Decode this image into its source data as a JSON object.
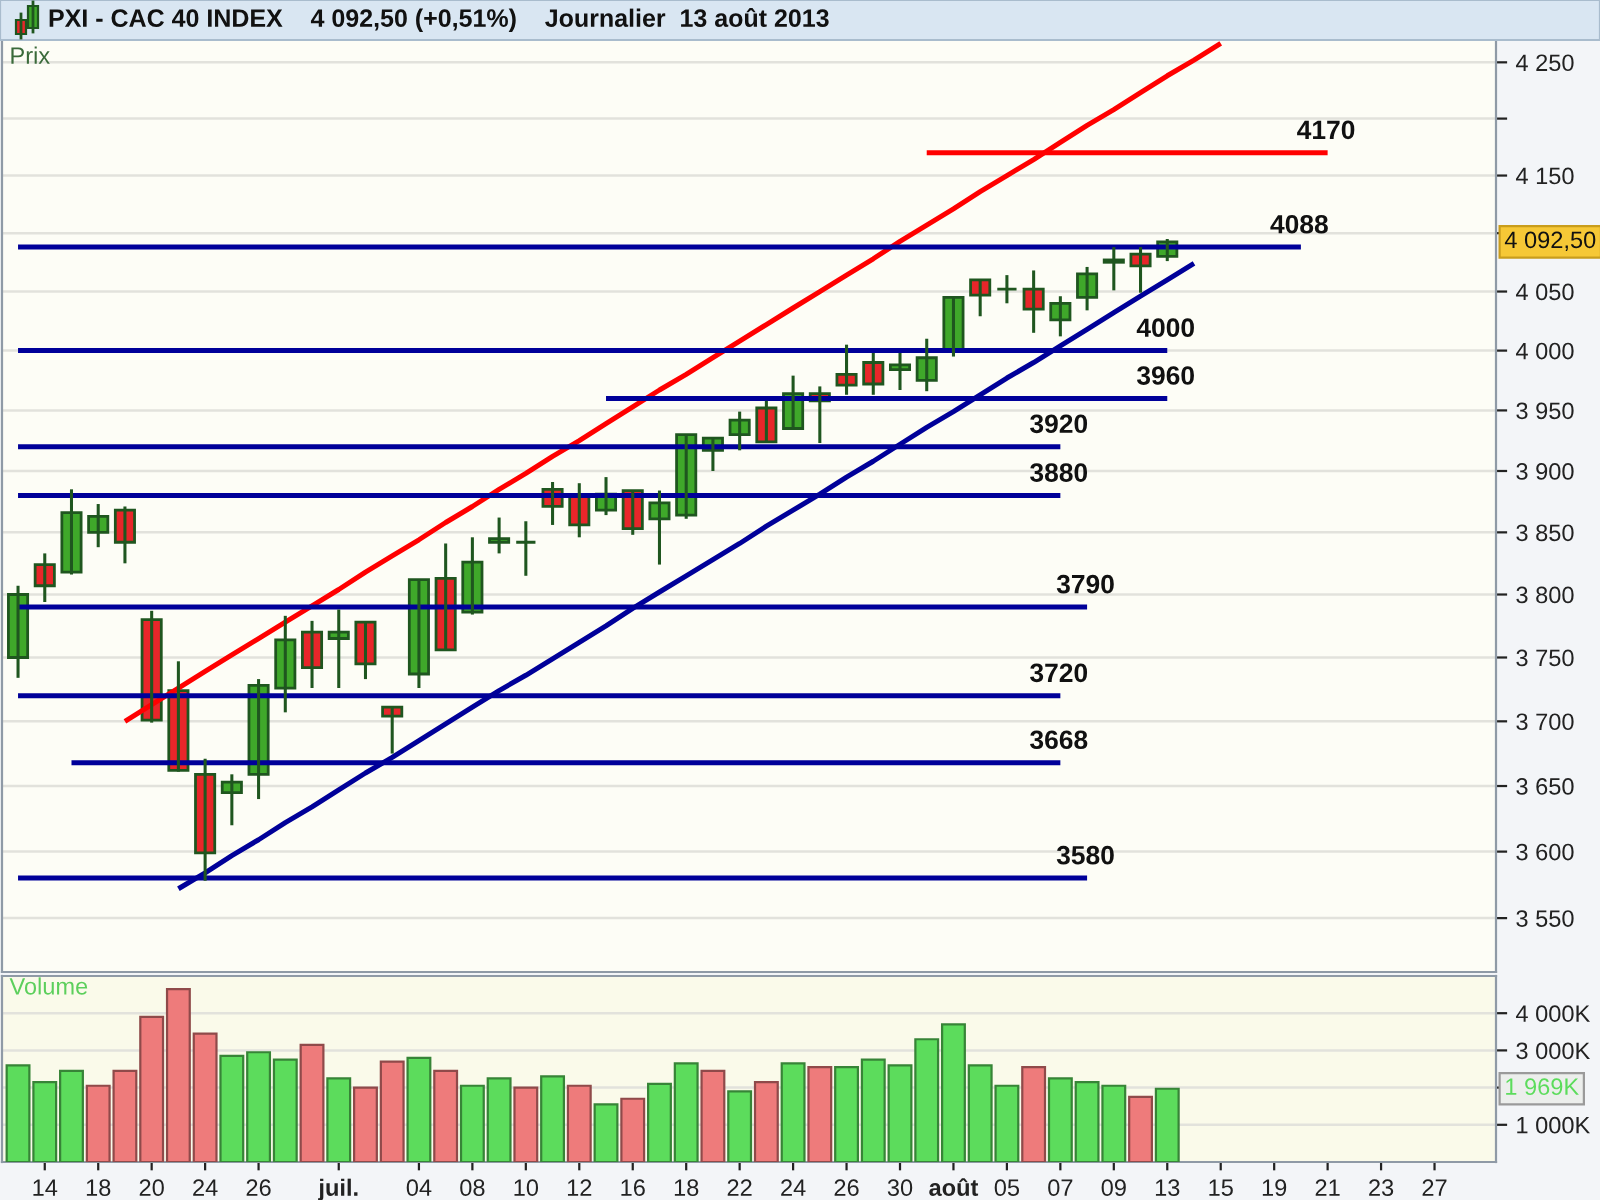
{
  "chart_data": [
    {
      "type": "candlestick",
      "title": "PXI - CAC 40 INDEX    4 092,50 (+0,51%)    Journalier  13 août 2013",
      "ylabel": "Prix",
      "categories": [
        null,
        null,
        null,
        null,
        null,
        null,
        null,
        null,
        null,
        null,
        null,
        null,
        null,
        null,
        null,
        null,
        null,
        null,
        null,
        null,
        null,
        null,
        null,
        null,
        null,
        null,
        null,
        null,
        null,
        null,
        null,
        null,
        null,
        null,
        null,
        null,
        null,
        null,
        null,
        null,
        null,
        null,
        null,
        null,
        null,
        null,
        null,
        null,
        null,
        null,
        null,
        null,
        null,
        null,
        null,
        null
      ],
      "ohlc": [
        [
          3750,
          3807,
          3734,
          3800
        ],
        [
          3824,
          3833,
          3794,
          3807
        ],
        [
          3818,
          3885,
          3816,
          3866
        ],
        [
          3850,
          3873,
          3838,
          3863
        ],
        [
          3868,
          3871,
          3825,
          3842
        ],
        [
          3780,
          3787,
          3699,
          3701
        ],
        [
          3724,
          3747,
          3661,
          3662
        ],
        [
          3659,
          3671,
          3578,
          3599
        ],
        [
          3645,
          3659,
          3620,
          3653
        ],
        [
          3659,
          3733,
          3640,
          3728
        ],
        [
          3726,
          3783,
          3707,
          3764
        ],
        [
          3770,
          3779,
          3726,
          3742
        ],
        [
          3765,
          3788,
          3726,
          3770
        ],
        [
          3778,
          3778,
          3733,
          3745
        ],
        [
          3711,
          3711,
          3675,
          3704
        ],
        [
          3737,
          3812,
          3726,
          3812
        ],
        [
          3813,
          3841,
          3756,
          3756
        ],
        [
          3786,
          3846,
          3784,
          3826
        ],
        [
          3842,
          3862,
          3833,
          3845
        ],
        [
          3842,
          3859,
          3815,
          3842
        ],
        [
          3885,
          3891,
          3856,
          3871
        ],
        [
          3880,
          3890,
          3846,
          3856
        ],
        [
          3868,
          3895,
          3864,
          3881
        ],
        [
          3884,
          3884,
          3848,
          3853
        ],
        [
          3861,
          3884,
          3824,
          3874
        ],
        [
          3864,
          3930,
          3861,
          3930
        ],
        [
          3917,
          3927,
          3900,
          3927
        ],
        [
          3930,
          3949,
          3917,
          3942
        ],
        [
          3952,
          3958,
          3924,
          3924
        ],
        [
          3935,
          3979,
          3935,
          3964
        ],
        [
          3964,
          3970,
          3923,
          3958
        ],
        [
          3980,
          4005,
          3963,
          3971
        ],
        [
          3990,
          3998,
          3963,
          3972
        ],
        [
          3984,
          3998,
          3967,
          3988
        ],
        [
          3975,
          4010,
          3966,
          3994
        ],
        [
          4000,
          4045,
          3995,
          4045
        ],
        [
          4060,
          4060,
          4029,
          4047
        ],
        [
          4052,
          4064,
          4040,
          4052
        ],
        [
          4052,
          4068,
          4015,
          4035
        ],
        [
          4026,
          4046,
          4012,
          4040
        ],
        [
          4045,
          4071,
          4034,
          4065
        ],
        [
          4075,
          4088,
          4051,
          4077
        ],
        [
          4082,
          4088,
          4049,
          4072
        ],
        [
          4080,
          4095,
          4076,
          4092.5
        ],
        null,
        null,
        null,
        null,
        null,
        null,
        null,
        null,
        null,
        null,
        null,
        null
      ],
      "colors": [
        "#3fa82a",
        "#e8262a",
        "#3fa82a",
        "#3fa82a",
        "#e8262a",
        "#e8262a",
        "#e8262a",
        "#e8262a",
        "#3fa82a",
        "#3fa82a",
        "#3fa82a",
        "#e8262a",
        "#3fa82a",
        "#e8262a",
        "#e8262a",
        "#3fa82a",
        "#e8262a",
        "#3fa82a",
        "#3fa82a",
        "#1f561f",
        "#e8262a",
        "#e8262a",
        "#3fa82a",
        "#e8262a",
        "#3fa82a",
        "#3fa82a",
        "#3fa82a",
        "#3fa82a",
        "#e8262a",
        "#3fa82a",
        "#e8262a",
        "#e8262a",
        "#e8262a",
        "#3fa82a",
        "#3fa82a",
        "#3fa82a",
        "#e8262a",
        "#1f561f",
        "#e8262a",
        "#3fa82a",
        "#3fa82a",
        "#3fa82a",
        "#e8262a",
        "#3fa82a",
        null,
        null,
        null,
        null,
        null,
        null,
        null,
        null,
        null,
        null,
        null,
        null
      ],
      "series": [
        {
          "type": "line",
          "color": "#ff0000",
          "values": [
            null,
            null,
            null,
            null,
            3700,
            3713,
            3726,
            3739,
            3752,
            3765,
            3778,
            3791,
            3804,
            3818,
            3831,
            3844,
            3858,
            3871,
            3885,
            3898,
            3912,
            3925,
            3939,
            3953,
            3967,
            3980,
            3994,
            4008,
            4022,
            4036,
            4050,
            4064,
            4078,
            4093,
            4107,
            4121,
            4136,
            4150,
            4164,
            4179,
            4194,
            4208,
            4223,
            4238,
            4252,
            4267,
            null,
            null,
            null,
            null,
            null,
            null,
            null,
            null,
            null,
            null
          ]
        },
        {
          "type": "line",
          "color": "#000099",
          "values": [
            null,
            null,
            null,
            null,
            null,
            null,
            3572,
            3584,
            3597,
            3609,
            3622,
            3634,
            3647,
            3660,
            3672,
            3685,
            3698,
            3711,
            3724,
            3736,
            3749,
            3762,
            3775,
            3789,
            3802,
            3815,
            3828,
            3841,
            3855,
            3868,
            3881,
            3895,
            3908,
            3922,
            3936,
            3949,
            3963,
            3977,
            3990,
            4004,
            4018,
            4032,
            4046,
            4060,
            4074,
            null,
            null,
            null,
            null,
            null,
            null,
            null,
            null,
            null,
            null,
            null
          ]
        },
        {
          "type": "line",
          "name": "4170",
          "color": "#ff0000",
          "values": [
            null,
            null,
            null,
            null,
            null,
            null,
            null,
            null,
            null,
            null,
            null,
            null,
            null,
            null,
            null,
            null,
            null,
            null,
            null,
            null,
            null,
            null,
            null,
            null,
            null,
            null,
            null,
            null,
            null,
            null,
            null,
            null,
            null,
            null,
            4170,
            4170,
            4170,
            4170,
            4170,
            4170,
            4170,
            4170,
            4170,
            4170,
            4170,
            4170,
            4170,
            4170,
            4170,
            4170,
            null,
            null,
            null,
            null,
            null,
            null
          ]
        },
        {
          "type": "line",
          "name": "4088",
          "color": "#000099",
          "values": [
            4088,
            4088,
            4088,
            4088,
            4088,
            4088,
            4088,
            4088,
            4088,
            4088,
            4088,
            4088,
            4088,
            4088,
            4088,
            4088,
            4088,
            4088,
            4088,
            4088,
            4088,
            4088,
            4088,
            4088,
            4088,
            4088,
            4088,
            4088,
            4088,
            4088,
            4088,
            4088,
            4088,
            4088,
            4088,
            4088,
            4088,
            4088,
            4088,
            4088,
            4088,
            4088,
            4088,
            4088,
            4088,
            4088,
            4088,
            4088,
            4088,
            null,
            null,
            null,
            null,
            null,
            null,
            null
          ]
        },
        {
          "type": "line",
          "name": "4000",
          "color": "#000099",
          "values": [
            4000,
            4000,
            4000,
            4000,
            4000,
            4000,
            4000,
            4000,
            4000,
            4000,
            4000,
            4000,
            4000,
            4000,
            4000,
            4000,
            4000,
            4000,
            4000,
            4000,
            4000,
            4000,
            4000,
            4000,
            4000,
            4000,
            4000,
            4000,
            4000,
            4000,
            4000,
            4000,
            4000,
            4000,
            4000,
            4000,
            4000,
            4000,
            4000,
            4000,
            4000,
            4000,
            4000,
            4000,
            null,
            null,
            null,
            null,
            null,
            null,
            null,
            null,
            null,
            null,
            null,
            null
          ]
        },
        {
          "type": "line",
          "name": "3960",
          "color": "#000099",
          "values": [
            null,
            null,
            null,
            null,
            null,
            null,
            null,
            null,
            null,
            null,
            null,
            null,
            null,
            null,
            null,
            null,
            null,
            null,
            null,
            null,
            null,
            null,
            3960,
            3960,
            3960,
            3960,
            3960,
            3960,
            3960,
            3960,
            3960,
            3960,
            3960,
            3960,
            3960,
            3960,
            3960,
            3960,
            3960,
            3960,
            3960,
            3960,
            3960,
            3960,
            null,
            null,
            null,
            null,
            null,
            null,
            null,
            null,
            null,
            null,
            null,
            null
          ]
        },
        {
          "type": "line",
          "name": "3920",
          "color": "#000099",
          "values": [
            3920,
            3920,
            3920,
            3920,
            3920,
            3920,
            3920,
            3920,
            3920,
            3920,
            3920,
            3920,
            3920,
            3920,
            3920,
            3920,
            3920,
            3920,
            3920,
            3920,
            3920,
            3920,
            3920,
            3920,
            3920,
            3920,
            3920,
            3920,
            3920,
            3920,
            3920,
            3920,
            3920,
            3920,
            3920,
            3920,
            3920,
            3920,
            3920,
            3920,
            null,
            null,
            null,
            null,
            null,
            null,
            null,
            null,
            null,
            null,
            null,
            null,
            null,
            null,
            null,
            null
          ]
        },
        {
          "type": "line",
          "name": "3880",
          "color": "#000099",
          "values": [
            3880,
            3880,
            3880,
            3880,
            3880,
            3880,
            3880,
            3880,
            3880,
            3880,
            3880,
            3880,
            3880,
            3880,
            3880,
            3880,
            3880,
            3880,
            3880,
            3880,
            3880,
            3880,
            3880,
            3880,
            3880,
            3880,
            3880,
            3880,
            3880,
            3880,
            3880,
            3880,
            3880,
            3880,
            3880,
            3880,
            3880,
            3880,
            3880,
            3880,
            null,
            null,
            null,
            null,
            null,
            null,
            null,
            null,
            null,
            null,
            null,
            null,
            null,
            null,
            null,
            null
          ]
        },
        {
          "type": "line",
          "name": "3790",
          "color": "#000099",
          "values": [
            3790,
            3790,
            3790,
            3790,
            3790,
            3790,
            3790,
            3790,
            3790,
            3790,
            3790,
            3790,
            3790,
            3790,
            3790,
            3790,
            3790,
            3790,
            3790,
            3790,
            3790,
            3790,
            3790,
            3790,
            3790,
            3790,
            3790,
            3790,
            3790,
            3790,
            3790,
            3790,
            3790,
            3790,
            3790,
            3790,
            3790,
            3790,
            3790,
            3790,
            3790,
            null,
            null,
            null,
            null,
            null,
            null,
            null,
            null,
            null,
            null,
            null,
            null,
            null,
            null,
            null
          ]
        },
        {
          "type": "line",
          "name": "3720",
          "color": "#000099",
          "values": [
            3720,
            3720,
            3720,
            3720,
            3720,
            3720,
            3720,
            3720,
            3720,
            3720,
            3720,
            3720,
            3720,
            3720,
            3720,
            3720,
            3720,
            3720,
            3720,
            3720,
            3720,
            3720,
            3720,
            3720,
            3720,
            3720,
            3720,
            3720,
            3720,
            3720,
            3720,
            3720,
            3720,
            3720,
            3720,
            3720,
            3720,
            3720,
            3720,
            3720,
            null,
            null,
            null,
            null,
            null,
            null,
            null,
            null,
            null,
            null,
            null,
            null,
            null,
            null,
            null,
            null
          ]
        },
        {
          "type": "line",
          "name": "3668",
          "color": "#000099",
          "values": [
            null,
            null,
            3668,
            3668,
            3668,
            3668,
            3668,
            3668,
            3668,
            3668,
            3668,
            3668,
            3668,
            3668,
            3668,
            3668,
            3668,
            3668,
            3668,
            3668,
            3668,
            3668,
            3668,
            3668,
            3668,
            3668,
            3668,
            3668,
            3668,
            3668,
            3668,
            3668,
            3668,
            3668,
            3668,
            3668,
            3668,
            3668,
            3668,
            3668,
            null,
            null,
            null,
            null,
            null,
            null,
            null,
            null,
            null,
            null,
            null,
            null,
            null,
            null,
            null,
            null
          ]
        },
        {
          "type": "line",
          "name": "3580",
          "color": "#000099",
          "values": [
            3580,
            3580,
            3580,
            3580,
            3580,
            3580,
            3580,
            3580,
            3580,
            3580,
            3580,
            3580,
            3580,
            3580,
            3580,
            3580,
            3580,
            3580,
            3580,
            3580,
            3580,
            3580,
            3580,
            3580,
            3580,
            3580,
            3580,
            3580,
            3580,
            3580,
            3580,
            3580,
            3580,
            3580,
            3580,
            3580,
            3580,
            3580,
            3580,
            3580,
            3580,
            null,
            null,
            null,
            null,
            null,
            null,
            null,
            null,
            null,
            null,
            null,
            null,
            null,
            null,
            null
          ]
        }
      ],
      "ylim": [
        3510,
        4270
      ],
      "log": true,
      "yticks": [
        {
          "value": 3550,
          "label": "3 550"
        },
        {
          "value": 3600,
          "label": "3 600"
        },
        {
          "value": 3650,
          "label": "3 650"
        },
        {
          "value": 3700,
          "label": "3 700"
        },
        {
          "value": 3750,
          "label": "3 750"
        },
        {
          "value": 3800,
          "label": "3 800"
        },
        {
          "value": 3850,
          "label": "3 850"
        },
        {
          "value": 3900,
          "label": "3 900"
        },
        {
          "value": 3950,
          "label": "3 950"
        },
        {
          "value": 4000,
          "label": "4 000"
        },
        {
          "value": 4050,
          "label": "4 050"
        },
        {
          "value": 4100,
          "label": null
        },
        {
          "value": 4150,
          "label": "4 150"
        },
        {
          "value": 4200,
          "label": null
        },
        {
          "value": 4250,
          "label": "4 250"
        }
      ],
      "grid": "y",
      "annotations": [
        "4 092,50"
      ]
    },
    {
      "type": "bar",
      "ylabel": "Volume",
      "categories": [
        null,
        "14",
        null,
        "18",
        null,
        "20",
        null,
        "24",
        null,
        "26",
        null,
        null,
        "juil.",
        null,
        null,
        "04",
        null,
        "08",
        null,
        "10",
        null,
        "12",
        null,
        "16",
        null,
        "18",
        null,
        "22",
        null,
        "24",
        null,
        "26",
        null,
        "30",
        null,
        "août",
        null,
        "05",
        null,
        "07",
        null,
        "09",
        null,
        "13",
        null,
        "15",
        null,
        "19",
        null,
        "21",
        null,
        "23",
        null,
        "27",
        null,
        null
      ],
      "values": [
        2600,
        2150,
        2450,
        2050,
        2450,
        3900,
        4650,
        3450,
        2850,
        2950,
        2750,
        3150,
        2250,
        2000,
        2700,
        2800,
        2450,
        2050,
        2250,
        2000,
        2300,
        2050,
        1550,
        1700,
        2100,
        2650,
        2450,
        1900,
        2150,
        2650,
        2550,
        2550,
        2750,
        2600,
        3300,
        3700,
        2600,
        2050,
        2550,
        2250,
        2150,
        2050,
        1750,
        1969,
        null,
        null,
        null,
        null,
        null,
        null,
        null,
        null,
        null,
        null,
        null,
        null
      ],
      "colors": [
        "#5cdc5c",
        "#5cdc5c",
        "#5cdc5c",
        "#ee7b7b",
        "#ee7b7b",
        "#ee7b7b",
        "#ee7b7b",
        "#ee7b7b",
        "#5cdc5c",
        "#5cdc5c",
        "#5cdc5c",
        "#ee7b7b",
        "#5cdc5c",
        "#ee7b7b",
        "#ee7b7b",
        "#5cdc5c",
        "#ee7b7b",
        "#5cdc5c",
        "#5cdc5c",
        "#ee7b7b",
        "#5cdc5c",
        "#ee7b7b",
        "#5cdc5c",
        "#ee7b7b",
        "#5cdc5c",
        "#5cdc5c",
        "#ee7b7b",
        "#5cdc5c",
        "#ee7b7b",
        "#5cdc5c",
        "#ee7b7b",
        "#5cdc5c",
        "#5cdc5c",
        "#5cdc5c",
        "#5cdc5c",
        "#5cdc5c",
        "#5cdc5c",
        "#5cdc5c",
        "#ee7b7b",
        "#5cdc5c",
        "#5cdc5c",
        "#5cdc5c",
        "#ee7b7b",
        "#5cdc5c",
        null,
        null,
        null,
        null,
        null,
        null,
        null,
        null,
        null,
        null,
        null,
        null
      ],
      "ylim": [
        0,
        5000
      ],
      "yticks": [
        {
          "value": 1000,
          "label": "1 000K"
        },
        {
          "value": 2000,
          "label": null
        },
        {
          "value": 3000,
          "label": "3 000K"
        },
        {
          "value": 4000,
          "label": "4 000K"
        }
      ],
      "grid": "y",
      "annotations": [
        "1 969K"
      ]
    }
  ]
}
